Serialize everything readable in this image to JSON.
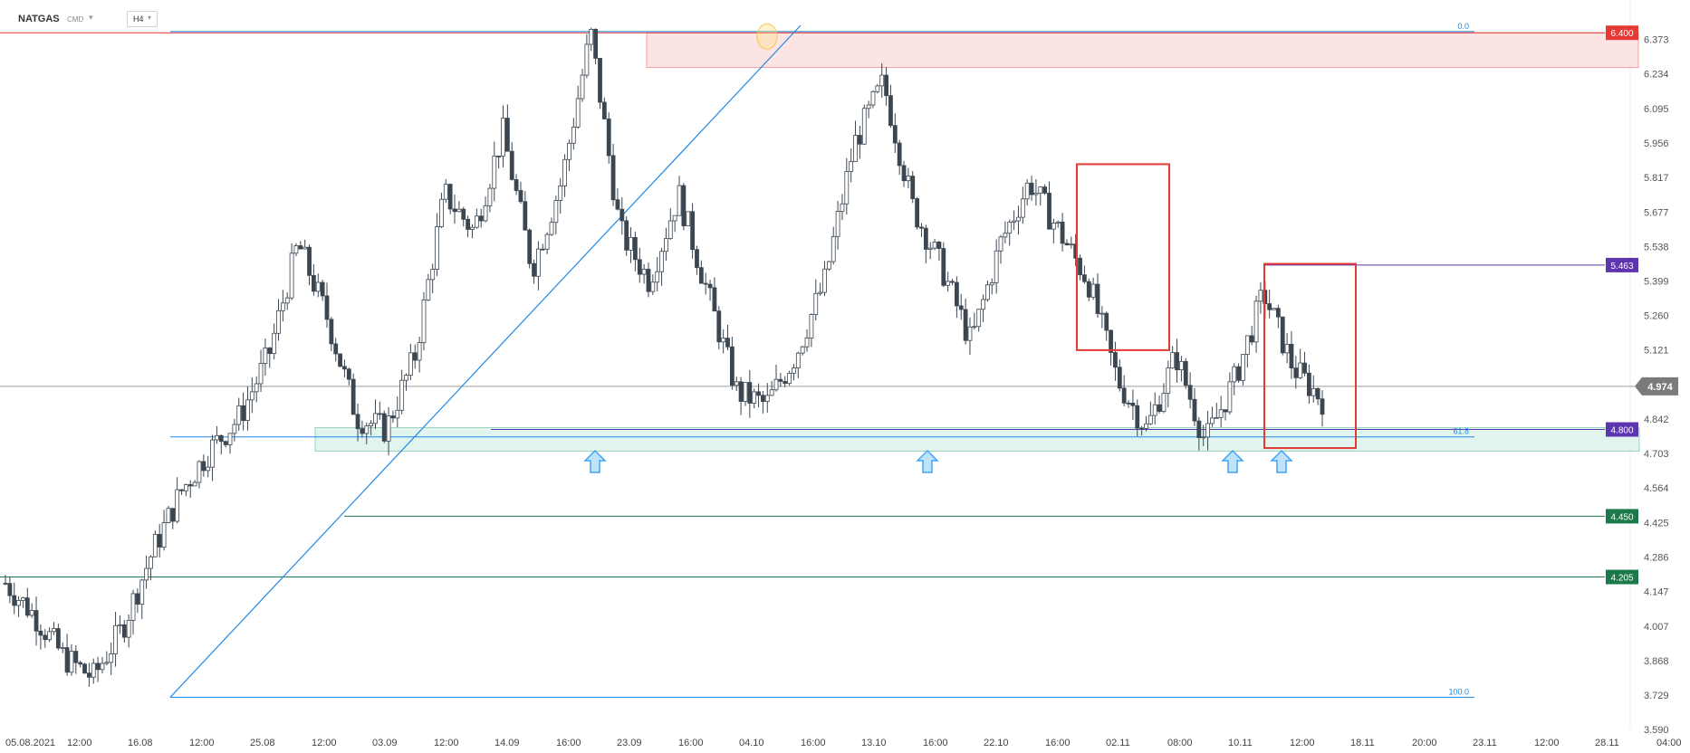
{
  "toolbar": {
    "symbol": "NATGAS",
    "source": "CMD",
    "timeframe": "H4"
  },
  "colors": {
    "bull": "#ffffff",
    "bear": "#3b4651",
    "wick": "#3b4651",
    "red": "#e53935",
    "purple": "#5e35b1",
    "green": "#1b7a4a",
    "blue": "#1e88e5",
    "gray": "#9e9e9e"
  },
  "chart_data": {
    "type": "candlestick",
    "y_axis": {
      "range": [
        3.59,
        6.43
      ],
      "tick_labels": [
        "6.373",
        "6.234",
        "6.095",
        "5.956",
        "5.817",
        "5.677",
        "5.538",
        "5.399",
        "5.260",
        "5.121",
        "4.842",
        "4.703",
        "4.564",
        "4.425",
        "4.286",
        "4.147",
        "4.007",
        "3.868",
        "3.729",
        "3.590"
      ]
    },
    "x_axis": {
      "tick_labels": [
        "05.08.2021",
        "12:00",
        "16.08",
        "12:00",
        "25.08",
        "12:00",
        "03.09",
        "12:00",
        "14.09",
        "16:00",
        "23.09",
        "16:00",
        "04.10",
        "16:00",
        "13.10",
        "16:00",
        "22.10",
        "16:00",
        "02.11",
        "08:00",
        "10.11",
        "12:00",
        "18.11",
        "20:00",
        "23.11",
        "12:00",
        "28.11",
        "04:00"
      ]
    },
    "current_price": "4.974",
    "levels": [
      {
        "label": "6.400",
        "value": 6.4,
        "color": "red"
      },
      {
        "label": "5.463",
        "value": 5.463,
        "color": "purple"
      },
      {
        "label": "4.800",
        "value": 4.8,
        "color": "purple"
      },
      {
        "label": "4.450",
        "value": 4.45,
        "color": "green"
      },
      {
        "label": "4.205",
        "value": 4.205,
        "color": "green"
      }
    ],
    "fib_labels": [
      "0.0",
      "61.8",
      "100.0"
    ],
    "fib_values": [
      6.405,
      4.77,
      3.72
    ],
    "zones": [
      {
        "name": "resistance",
        "low": 6.26,
        "high": 6.4
      },
      {
        "name": "support",
        "low": 4.72,
        "high": 4.8
      }
    ],
    "anchors": [
      {
        "close": 4.18
      },
      {
        "close": 4.05
      },
      {
        "close": 3.88
      },
      {
        "close": 3.8
      },
      {
        "close": 4.0
      },
      {
        "close": 4.3
      },
      {
        "close": 4.55
      },
      {
        "close": 4.72
      },
      {
        "close": 4.85
      },
      {
        "close": 5.1
      },
      {
        "close": 5.55
      },
      {
        "close": 5.25
      },
      {
        "close": 4.85
      },
      {
        "close": 4.8
      },
      {
        "close": 5.1
      },
      {
        "close": 5.75
      },
      {
        "close": 5.6
      },
      {
        "close": 6.0
      },
      {
        "close": 5.45
      },
      {
        "close": 5.8
      },
      {
        "close": 6.4
      },
      {
        "close": 5.6
      },
      {
        "close": 5.4
      },
      {
        "close": 5.75
      },
      {
        "close": 5.35
      },
      {
        "close": 4.95
      },
      {
        "close": 4.9
      },
      {
        "close": 5.1
      },
      {
        "close": 5.4
      },
      {
        "close": 5.95
      },
      {
        "close": 6.2
      },
      {
        "close": 5.7
      },
      {
        "close": 5.45
      },
      {
        "close": 5.15
      },
      {
        "close": 5.55
      },
      {
        "close": 5.8
      },
      {
        "close": 5.6
      },
      {
        "close": 5.4
      },
      {
        "close": 5.0
      },
      {
        "close": 4.8
      },
      {
        "close": 5.1
      },
      {
        "close": 4.75
      },
      {
        "close": 5.0
      },
      {
        "close": 5.35
      },
      {
        "close": 5.05
      },
      {
        "close": 4.92
      }
    ]
  }
}
